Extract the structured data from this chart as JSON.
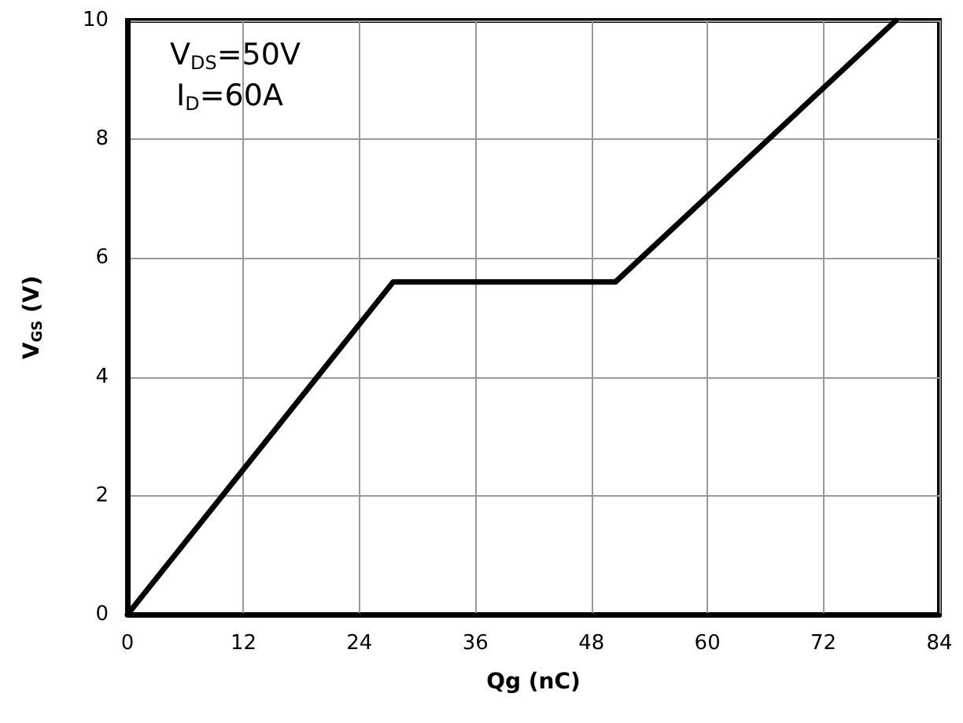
{
  "chart_data": {
    "type": "line",
    "xlabel": "Qg (nC)",
    "ylabel": "V$_{GS}$ (V)",
    "annotations": [
      "V$_{DS}$=50V",
      "I$_{D}$=60A"
    ],
    "x": [
      0,
      27.5,
      50.5,
      79.5
    ],
    "series": [
      {
        "color": "#000000",
        "values": [
          0,
          5.6,
          5.6,
          10
        ]
      }
    ],
    "xlim": [
      0,
      84
    ],
    "xticks": [
      0,
      12,
      24,
      36,
      48,
      60,
      72,
      84
    ],
    "ylim": [
      0,
      10
    ],
    "yticks": [
      0,
      2,
      4,
      6,
      8,
      10
    ],
    "grid": true,
    "marker": "none",
    "line_style": "solid"
  }
}
